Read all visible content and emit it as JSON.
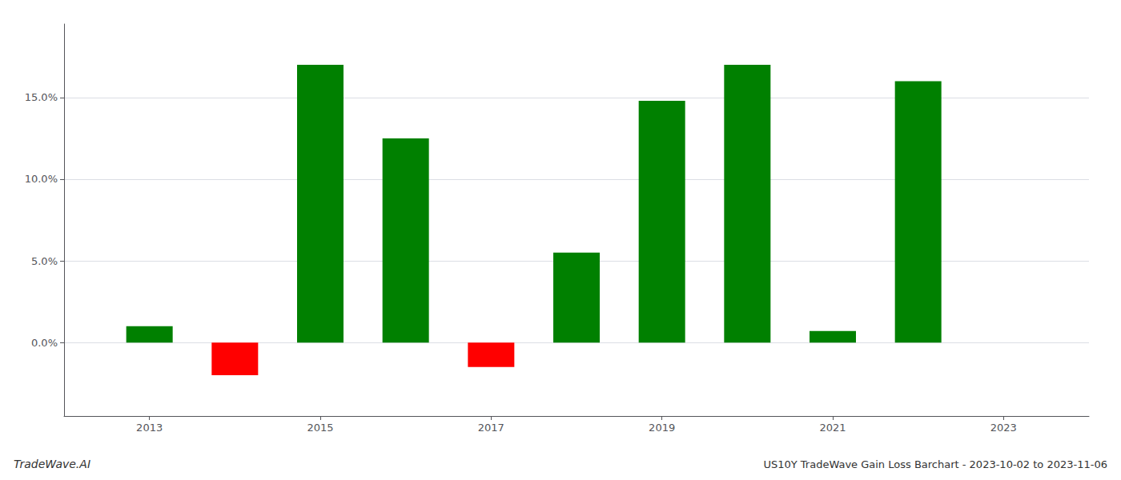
{
  "chart_data": {
    "type": "bar",
    "title": "US10Y TradeWave Gain Loss Barchart - 2023-10-02 to 2023-11-06",
    "annotations": [
      "TradeWave.AI"
    ],
    "x": [
      2013,
      2014,
      2015,
      2016,
      2017,
      2018,
      2019,
      2020,
      2021,
      2022
    ],
    "values": [
      0.01,
      -0.02,
      0.17,
      0.125,
      -0.015,
      0.055,
      0.148,
      0.17,
      0.007,
      0.16
    ],
    "colors": [
      "#008000",
      "#ff0000",
      "#008000",
      "#008000",
      "#ff0000",
      "#008000",
      "#008000",
      "#008000",
      "#008000",
      "#008000"
    ],
    "xlim": [
      2012.0,
      2024.0
    ],
    "xticks": [
      2013,
      2015,
      2017,
      2019,
      2021,
      2023
    ],
    "ylim": [
      -0.045,
      0.195
    ],
    "yticks": [
      {
        "value": 0.0,
        "label": "0.0%"
      },
      {
        "value": 0.05,
        "label": "5.0%"
      },
      {
        "value": 0.1,
        "label": "10.0%"
      },
      {
        "value": 0.15,
        "label": "15.0%"
      }
    ],
    "grid": true
  }
}
